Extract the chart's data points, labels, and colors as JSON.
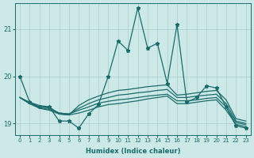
{
  "xlabel": "Humidex (Indice chaleur)",
  "background_color": "#cce9e8",
  "grid_color": "#aaccca",
  "line_color": "#1a6b6b",
  "xlim": [
    -0.5,
    23.5
  ],
  "ylim": [
    18.75,
    21.55
  ],
  "yticks": [
    19,
    20,
    21
  ],
  "xticks": [
    0,
    1,
    2,
    3,
    4,
    5,
    6,
    7,
    8,
    9,
    10,
    11,
    12,
    13,
    14,
    15,
    16,
    17,
    18,
    19,
    20,
    21,
    22,
    23
  ],
  "lines": [
    {
      "x": [
        0,
        1,
        2,
        3,
        4,
        5,
        6,
        7,
        8,
        9,
        10,
        11,
        12,
        13,
        14,
        15,
        16,
        17,
        18,
        19,
        20,
        21,
        22,
        23
      ],
      "y": [
        20.0,
        19.45,
        19.35,
        19.35,
        19.05,
        19.05,
        18.9,
        19.2,
        19.4,
        20.0,
        20.75,
        20.55,
        21.45,
        20.6,
        20.7,
        19.85,
        21.1,
        19.45,
        19.55,
        19.8,
        19.75,
        19.35,
        18.95,
        18.9
      ],
      "marker": "*",
      "markersize": 3.5,
      "linewidth": 0.9
    },
    {
      "x": [
        0,
        1,
        2,
        3,
        4,
        5,
        6,
        7,
        8,
        9,
        10,
        11,
        12,
        13,
        14,
        15,
        16,
        17,
        18,
        19,
        20,
        21,
        22,
        23
      ],
      "y": [
        19.55,
        19.45,
        19.38,
        19.35,
        19.2,
        19.18,
        19.38,
        19.5,
        19.58,
        19.65,
        19.7,
        19.72,
        19.75,
        19.78,
        19.8,
        19.82,
        19.6,
        19.62,
        19.65,
        19.68,
        19.7,
        19.5,
        19.1,
        19.05
      ],
      "marker": null,
      "markersize": 3,
      "linewidth": 0.9
    },
    {
      "x": [
        0,
        1,
        2,
        3,
        4,
        5,
        6,
        7,
        8,
        9,
        10,
        11,
        12,
        13,
        14,
        15,
        16,
        17,
        18,
        19,
        20,
        21,
        22,
        23
      ],
      "y": [
        19.55,
        19.42,
        19.35,
        19.33,
        19.22,
        19.2,
        19.32,
        19.42,
        19.5,
        19.55,
        19.6,
        19.62,
        19.65,
        19.67,
        19.7,
        19.72,
        19.55,
        19.55,
        19.58,
        19.6,
        19.62,
        19.42,
        19.05,
        19.0
      ],
      "marker": null,
      "markersize": 3,
      "linewidth": 0.9
    },
    {
      "x": [
        0,
        1,
        2,
        3,
        4,
        5,
        6,
        7,
        8,
        9,
        10,
        11,
        12,
        13,
        14,
        15,
        16,
        17,
        18,
        19,
        20,
        21,
        22,
        23
      ],
      "y": [
        19.55,
        19.42,
        19.33,
        19.3,
        19.22,
        19.2,
        19.28,
        19.35,
        19.43,
        19.47,
        19.5,
        19.52,
        19.55,
        19.58,
        19.6,
        19.62,
        19.48,
        19.48,
        19.5,
        19.53,
        19.55,
        19.35,
        19.02,
        18.97
      ],
      "marker": null,
      "markersize": 3,
      "linewidth": 0.9
    },
    {
      "x": [
        0,
        1,
        2,
        3,
        4,
        5,
        6,
        7,
        8,
        9,
        10,
        11,
        12,
        13,
        14,
        15,
        16,
        17,
        18,
        19,
        20,
        21,
        22,
        23
      ],
      "y": [
        19.55,
        19.42,
        19.32,
        19.28,
        19.2,
        19.18,
        19.22,
        19.28,
        19.35,
        19.4,
        19.42,
        19.45,
        19.48,
        19.52,
        19.55,
        19.58,
        19.42,
        19.42,
        19.45,
        19.48,
        19.5,
        19.28,
        18.98,
        18.93
      ],
      "marker": null,
      "markersize": 3,
      "linewidth": 0.9
    }
  ]
}
